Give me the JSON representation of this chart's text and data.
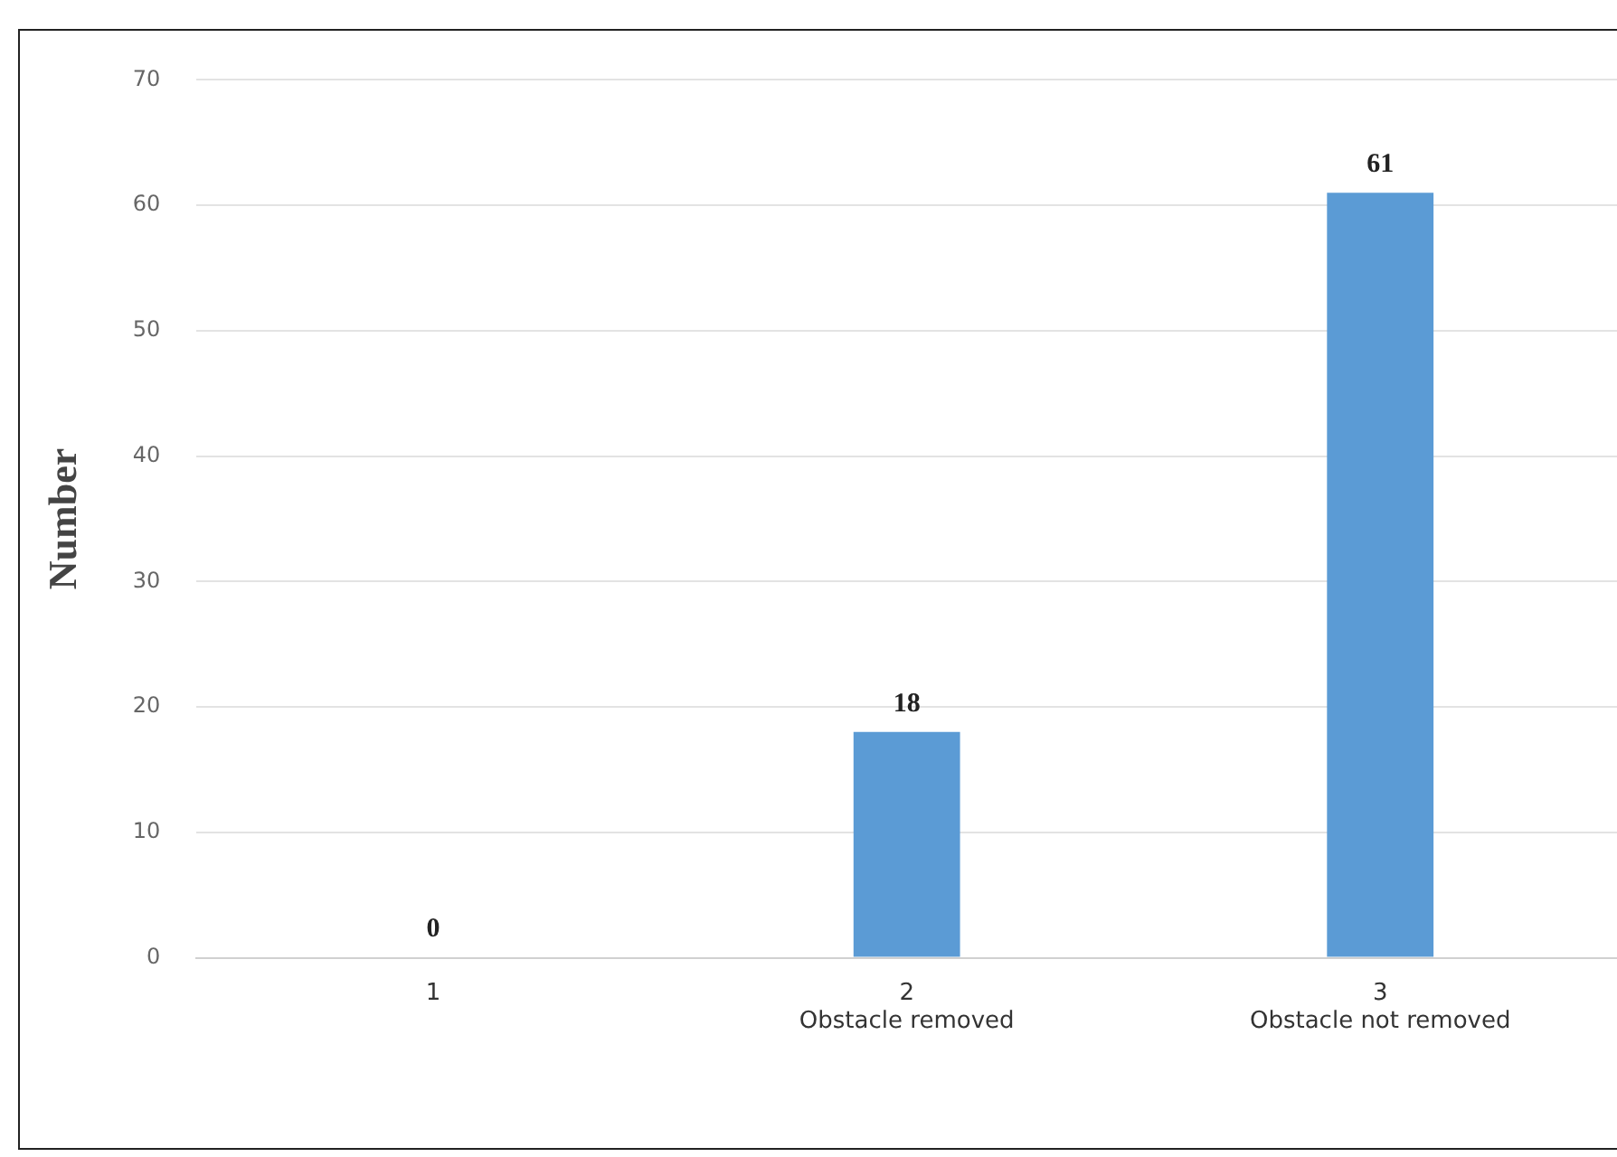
{
  "chart_data": {
    "type": "bar",
    "ylabel": "Number",
    "categories": [
      "1",
      "2\nObstacle removed",
      "3\nObstacle not removed"
    ],
    "values": [
      0,
      18,
      61
    ],
    "color": "#5b9bd5",
    "ylim": [
      0,
      70
    ],
    "yticks": [
      0,
      10,
      20,
      30,
      40,
      50,
      60,
      70
    ],
    "grid": "y",
    "data_labels": true
  }
}
